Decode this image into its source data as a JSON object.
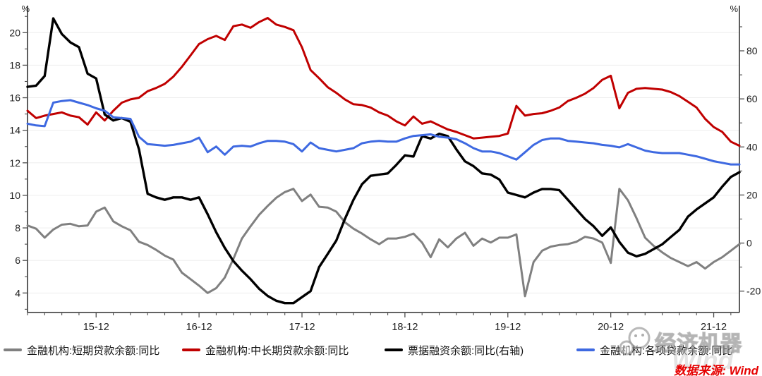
{
  "chart_data": {
    "type": "line",
    "title": "",
    "grid": "horizontal-light",
    "legend_position": "bottom",
    "x": [
      "15-04",
      "15-05",
      "15-06",
      "15-07",
      "15-08",
      "15-09",
      "15-10",
      "15-11",
      "15-12",
      "16-01",
      "16-02",
      "16-03",
      "16-04",
      "16-05",
      "16-06",
      "16-07",
      "16-08",
      "16-09",
      "16-10",
      "16-11",
      "16-12",
      "17-01",
      "17-02",
      "17-03",
      "17-04",
      "17-05",
      "17-06",
      "17-07",
      "17-08",
      "17-09",
      "17-10",
      "17-11",
      "17-12",
      "18-01",
      "18-02",
      "18-03",
      "18-04",
      "18-05",
      "18-06",
      "18-07",
      "18-08",
      "18-09",
      "18-10",
      "18-11",
      "18-12",
      "19-01",
      "19-02",
      "19-03",
      "19-04",
      "19-05",
      "19-06",
      "19-07",
      "19-08",
      "19-09",
      "19-10",
      "19-11",
      "19-12",
      "20-01",
      "20-02",
      "20-03",
      "20-04",
      "20-05",
      "20-06",
      "20-07",
      "20-08",
      "20-09",
      "20-10",
      "20-11",
      "20-12",
      "21-01",
      "21-02",
      "21-03",
      "21-04",
      "21-05",
      "21-06",
      "21-07",
      "21-08",
      "21-09",
      "21-10",
      "21-11",
      "21-12",
      "22-01",
      "22-02",
      "22-03"
    ],
    "x_major_indices": [
      8,
      20,
      32,
      44,
      56,
      68,
      80
    ],
    "x_major_labels": [
      "15-12",
      "16-12",
      "17-12",
      "18-12",
      "19-12",
      "20-12",
      "21-12"
    ],
    "left_axis": {
      "unit": "%",
      "ticks": [
        4,
        6,
        8,
        10,
        12,
        14,
        16,
        18,
        20
      ],
      "minor_ticks": [
        3,
        5,
        7,
        9,
        11,
        13,
        15,
        17,
        19,
        21
      ],
      "range": [
        2.8,
        21.66
      ]
    },
    "right_axis": {
      "unit": "%",
      "ticks": [
        -20,
        0,
        20,
        40,
        60,
        80
      ],
      "minor_ticks": [
        -10,
        10,
        30,
        50,
        70,
        90
      ],
      "range": [
        -28.9,
        98.8
      ]
    },
    "series": [
      {
        "name": "金融机构:短期贷款余额:同比",
        "color": "#808080",
        "axis": "left",
        "values": [
          8.15,
          7.95,
          7.4,
          7.9,
          8.2,
          8.25,
          8.1,
          8.15,
          9.0,
          9.25,
          8.4,
          8.1,
          7.85,
          7.15,
          6.95,
          6.65,
          6.3,
          6.05,
          5.25,
          4.85,
          4.45,
          4.0,
          4.3,
          4.95,
          6.1,
          7.35,
          8.1,
          8.8,
          9.35,
          9.85,
          10.2,
          10.4,
          9.65,
          10.05,
          9.3,
          9.25,
          9.0,
          8.35,
          7.95,
          7.65,
          7.3,
          7.0,
          7.35,
          7.35,
          7.45,
          7.65,
          7.1,
          6.2,
          7.3,
          6.8,
          7.35,
          7.7,
          6.9,
          7.35,
          7.1,
          7.4,
          7.4,
          7.6,
          3.8,
          5.9,
          6.6,
          6.85,
          6.95,
          7.0,
          7.15,
          7.45,
          7.35,
          7.1,
          5.85,
          10.4,
          9.7,
          8.6,
          7.4,
          6.9,
          6.5,
          6.15,
          5.9,
          5.65,
          5.9,
          5.5,
          5.9,
          6.2,
          6.6,
          7.0
        ]
      },
      {
        "name": "金融机构:中长期贷款余额:同比",
        "color": "#c00000",
        "axis": "left",
        "values": [
          15.2,
          14.75,
          14.9,
          15.0,
          15.1,
          14.9,
          14.8,
          14.35,
          15.1,
          14.6,
          15.2,
          15.7,
          15.9,
          16.0,
          16.4,
          16.6,
          16.85,
          17.3,
          17.9,
          18.6,
          19.3,
          19.6,
          19.8,
          19.55,
          20.4,
          20.5,
          20.3,
          20.65,
          20.9,
          20.5,
          20.35,
          20.15,
          19.1,
          17.7,
          17.2,
          16.65,
          16.3,
          15.9,
          15.6,
          15.55,
          15.4,
          15.1,
          14.9,
          14.55,
          14.3,
          14.85,
          14.4,
          14.55,
          14.3,
          14.05,
          13.9,
          13.7,
          13.5,
          13.55,
          13.6,
          13.65,
          13.8,
          15.5,
          14.9,
          15.0,
          15.05,
          15.2,
          15.4,
          15.8,
          16.0,
          16.25,
          16.6,
          17.1,
          17.35,
          15.35,
          16.3,
          16.55,
          16.6,
          16.55,
          16.5,
          16.35,
          16.1,
          15.75,
          15.4,
          14.7,
          14.2,
          13.9,
          13.3,
          13.05
        ]
      },
      {
        "name": "票据融资余额:同比(右轴)",
        "color": "#000000",
        "axis": "right",
        "values": [
          65,
          65.5,
          69.5,
          93.5,
          87,
          83.5,
          81.5,
          70.5,
          68.5,
          53.5,
          51,
          52,
          50.5,
          39,
          20.5,
          19,
          18,
          19,
          19,
          18,
          19,
          12,
          4.5,
          -2,
          -7.5,
          -11.5,
          -15,
          -19,
          -22,
          -24,
          -25,
          -25,
          -22.5,
          -20,
          -10,
          -4.5,
          1,
          10,
          18,
          24.5,
          28,
          28.5,
          29,
          32.5,
          36.5,
          36,
          44.5,
          43.5,
          45.5,
          44.5,
          39,
          34,
          32,
          29,
          28.5,
          26.5,
          21,
          20,
          19,
          21,
          22.5,
          22.5,
          22,
          18,
          14,
          10,
          7,
          3,
          6.5,
          0.5,
          -4,
          -5.5,
          -4.5,
          -2.5,
          -0.5,
          2.5,
          5.5,
          11,
          14,
          16.5,
          19,
          23.5,
          27.5,
          29.5
        ]
      },
      {
        "name": "金融机构:各项贷款余额:同比",
        "color": "#3e69e1",
        "axis": "left",
        "values": [
          14.4,
          14.3,
          14.25,
          15.7,
          15.8,
          15.85,
          15.7,
          15.55,
          15.35,
          15.2,
          14.8,
          14.75,
          14.7,
          13.6,
          13.15,
          13.1,
          13.05,
          13.1,
          13.2,
          13.3,
          13.55,
          12.65,
          13.0,
          12.5,
          13.0,
          13.05,
          13.0,
          13.2,
          13.35,
          13.35,
          13.3,
          13.15,
          12.7,
          13.25,
          12.9,
          12.8,
          12.7,
          12.8,
          12.9,
          13.2,
          13.3,
          13.35,
          13.3,
          13.3,
          13.5,
          13.65,
          13.7,
          13.75,
          13.6,
          13.55,
          13.45,
          13.2,
          12.9,
          12.7,
          12.7,
          12.6,
          12.4,
          12.2,
          12.65,
          13.1,
          13.4,
          13.5,
          13.5,
          13.35,
          13.3,
          13.25,
          13.2,
          13.1,
          13.05,
          12.95,
          13.15,
          12.95,
          12.75,
          12.65,
          12.6,
          12.6,
          12.6,
          12.5,
          12.4,
          12.25,
          12.1,
          12.0,
          11.9,
          11.9
        ]
      }
    ]
  },
  "colors": {
    "axis_line": "#4d4d4d",
    "tick_text": "#1f1f1f",
    "grid": "#ededed",
    "source_red": "#e60000"
  },
  "source": {
    "label": "数据来源: Wind"
  },
  "watermark": {
    "text": "经济机器",
    "wind": "Wind"
  }
}
